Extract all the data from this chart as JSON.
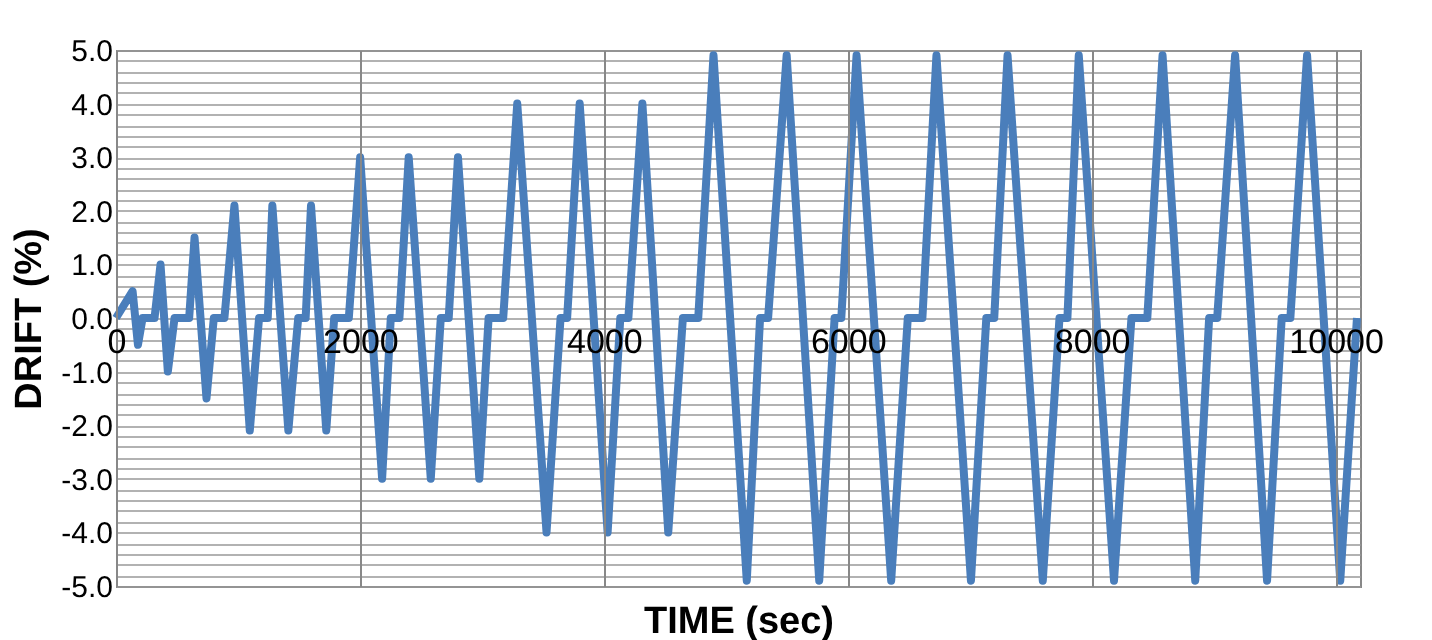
{
  "chart_data": {
    "type": "line",
    "xlabel": "TIME (sec)",
    "ylabel": "DRIFT (%)",
    "x": [
      0,
      136,
      180,
      218,
      316,
      365,
      425,
      480,
      600,
      644,
      742,
      802,
      889,
      971,
      1097,
      1173,
      1244,
      1282,
      1413,
      1494,
      1555,
      1599,
      1724,
      1789,
      1909,
      2002,
      2182,
      2253,
      2324,
      2400,
      2581,
      2663,
      2728,
      2804,
      2979,
      3055,
      3175,
      3290,
      3530,
      3645,
      3699,
      3802,
      4031,
      4135,
      4201,
      4316,
      4528,
      4648,
      4774,
      4899,
      5172,
      5281,
      5347,
      5499,
      5766,
      5892,
      5947,
      6072,
      6356,
      6492,
      6612,
      6727,
      7010,
      7136,
      7201,
      7310,
      7599,
      7736,
      7801,
      7894,
      8183,
      8326,
      8456,
      8581,
      8849,
      8963,
      9029,
      9176,
      9438,
      9558,
      9629,
      9766,
      10038,
      10175
    ],
    "series": [
      {
        "color": "#4a7ebb",
        "values": [
          0,
          0.5,
          -0.5,
          0,
          0,
          1.0,
          -1.0,
          0,
          0,
          1.5,
          -1.5,
          0,
          0,
          2.1,
          -2.1,
          0,
          0,
          2.1,
          -2.1,
          0,
          0,
          2.1,
          -2.1,
          0,
          0,
          3.0,
          -3.0,
          0,
          0,
          3.0,
          -3.0,
          0,
          0,
          3.0,
          -3.0,
          0,
          0,
          4.0,
          -4.0,
          0,
          0,
          4.0,
          -4.0,
          0,
          0,
          4.0,
          -4.0,
          0,
          0,
          4.9,
          -4.9,
          0,
          0,
          4.9,
          -4.9,
          0,
          0,
          4.9,
          -4.9,
          0,
          0,
          4.9,
          -4.9,
          0,
          0,
          4.9,
          -4.9,
          0,
          0,
          4.9,
          -4.9,
          0,
          0,
          4.9,
          -4.9,
          0,
          0,
          4.9,
          -4.9,
          0,
          0,
          4.9,
          -4.9,
          0
        ]
      }
    ],
    "xlim": [
      0,
      10200
    ],
    "xticks": [
      0,
      2000,
      4000,
      6000,
      8000,
      10000
    ],
    "ylim": [
      -5,
      5
    ],
    "yticks": [
      {
        "value": -5,
        "label": "-5.0"
      },
      {
        "value": -4.8,
        "label": null
      },
      {
        "value": -4.6,
        "label": null
      },
      {
        "value": -4.4,
        "label": null
      },
      {
        "value": -4.2,
        "label": null
      },
      {
        "value": -4,
        "label": "-4.0"
      },
      {
        "value": -3.8,
        "label": null
      },
      {
        "value": -3.6,
        "label": null
      },
      {
        "value": -3.4,
        "label": null
      },
      {
        "value": -3.2,
        "label": null
      },
      {
        "value": -3,
        "label": "-3.0"
      },
      {
        "value": -2.8,
        "label": null
      },
      {
        "value": -2.6,
        "label": null
      },
      {
        "value": -2.4,
        "label": null
      },
      {
        "value": -2.2,
        "label": null
      },
      {
        "value": -2,
        "label": "-2.0"
      },
      {
        "value": -1.8,
        "label": null
      },
      {
        "value": -1.6,
        "label": null
      },
      {
        "value": -1.4,
        "label": null
      },
      {
        "value": -1.2,
        "label": null
      },
      {
        "value": -1,
        "label": "-1.0"
      },
      {
        "value": -0.8,
        "label": null
      },
      {
        "value": -0.6,
        "label": null
      },
      {
        "value": -0.4,
        "label": null
      },
      {
        "value": -0.2,
        "label": null
      },
      {
        "value": 0,
        "label": "0.0"
      },
      {
        "value": 0.2,
        "label": null
      },
      {
        "value": 0.4,
        "label": null
      },
      {
        "value": 0.6,
        "label": null
      },
      {
        "value": 0.8,
        "label": null
      },
      {
        "value": 1,
        "label": "1.0"
      },
      {
        "value": 1.2,
        "label": null
      },
      {
        "value": 1.4,
        "label": null
      },
      {
        "value": 1.6,
        "label": null
      },
      {
        "value": 1.8,
        "label": null
      },
      {
        "value": 2,
        "label": "2.0"
      },
      {
        "value": 2.2,
        "label": null
      },
      {
        "value": 2.4,
        "label": null
      },
      {
        "value": 2.6,
        "label": null
      },
      {
        "value": 2.8,
        "label": null
      },
      {
        "value": 3,
        "label": "3.0"
      },
      {
        "value": 3.2,
        "label": null
      },
      {
        "value": 3.4,
        "label": null
      },
      {
        "value": 3.6,
        "label": null
      },
      {
        "value": 3.8,
        "label": null
      },
      {
        "value": 4,
        "label": "4.0"
      },
      {
        "value": 4.2,
        "label": null
      },
      {
        "value": 4.4,
        "label": null
      },
      {
        "value": 4.6,
        "label": null
      },
      {
        "value": 4.8,
        "label": null
      },
      {
        "value": 5,
        "label": "5.0"
      }
    ],
    "grid": true,
    "marker": "none",
    "line_style": "solid"
  }
}
